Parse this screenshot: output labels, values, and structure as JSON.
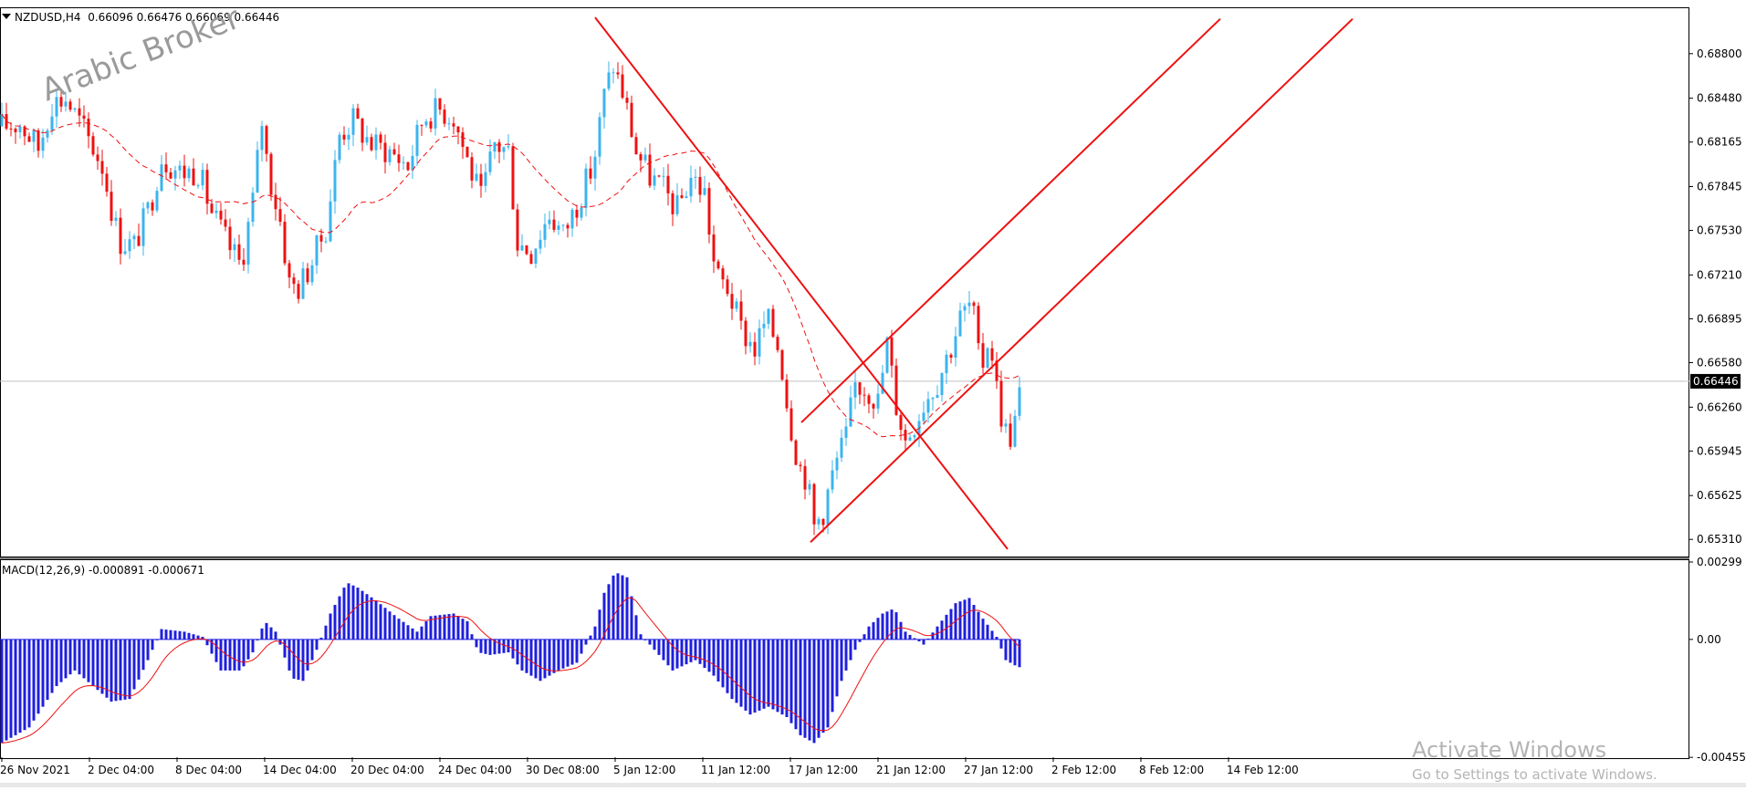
{
  "chart_data": [
    {
      "type": "candlestick",
      "symbol_line": "NZDUSD,H4",
      "ohlc_text": "0.66096 0.66476 0.66069 0.66446",
      "ylim": [
        0.652,
        0.6912
      ],
      "price_ticks": [
        "0.68800",
        "0.68480",
        "0.68165",
        "0.67845",
        "0.67530",
        "0.67210",
        "0.66895",
        "0.66580",
        "0.66260",
        "0.65945",
        "0.65625",
        "0.65310"
      ],
      "current_price_label": "0.66446",
      "current_price": 0.66446,
      "x_tick_labels": [
        "26 Nov 2021",
        "2 Dec 04:00",
        "8 Dec 04:00",
        "14 Dec 04:00",
        "20 Dec 04:00",
        "24 Dec 04:00",
        "30 Dec 08:00",
        "5 Jan 12:00",
        "11 Jan 12:00",
        "17 Jan 12:00",
        "21 Jan 12:00",
        "27 Jan 12:00",
        "2 Feb 12:00",
        "8 Feb 12:00",
        "14 Feb 12:00"
      ],
      "bull_color": "#3cb4ee",
      "bear_color": "#ee1111",
      "moving_average_color": "#ee1111",
      "trendline_color": "#ee1111",
      "close_path": [
        [
          0,
          0.6828
        ],
        [
          20,
          0.683
        ],
        [
          40,
          0.6812
        ],
        [
          55,
          0.6845
        ],
        [
          70,
          0.6848
        ],
        [
          90,
          0.6825
        ],
        [
          110,
          0.68
        ],
        [
          128,
          0.6746
        ],
        [
          145,
          0.6742
        ],
        [
          162,
          0.677
        ],
        [
          175,
          0.6806
        ],
        [
          195,
          0.6795
        ],
        [
          215,
          0.6796
        ],
        [
          230,
          0.6766
        ],
        [
          250,
          0.674
        ],
        [
          262,
          0.6728
        ],
        [
          275,
          0.6775
        ],
        [
          285,
          0.6832
        ],
        [
          292,
          0.6795
        ],
        [
          305,
          0.676
        ],
        [
          315,
          0.6715
        ],
        [
          325,
          0.6712
        ],
        [
          338,
          0.6728
        ],
        [
          355,
          0.6755
        ],
        [
          370,
          0.6822
        ],
        [
          385,
          0.6832
        ],
        [
          405,
          0.6815
        ],
        [
          425,
          0.681
        ],
        [
          445,
          0.68
        ],
        [
          462,
          0.6835
        ],
        [
          480,
          0.684
        ],
        [
          495,
          0.6835
        ],
        [
          512,
          0.68
        ],
        [
          525,
          0.6775
        ],
        [
          540,
          0.6815
        ],
        [
          555,
          0.681
        ],
        [
          565,
          0.6745
        ],
        [
          580,
          0.6738
        ],
        [
          600,
          0.6765
        ],
        [
          615,
          0.675
        ],
        [
          630,
          0.6772
        ],
        [
          648,
          0.68
        ],
        [
          660,
          0.685
        ],
        [
          670,
          0.6872
        ],
        [
          682,
          0.6848
        ],
        [
          695,
          0.681
        ],
        [
          710,
          0.6792
        ],
        [
          725,
          0.6782
        ],
        [
          740,
          0.6768
        ],
        [
          755,
          0.6792
        ],
        [
          770,
          0.678
        ],
        [
          782,
          0.672
        ],
        [
          795,
          0.6712
        ],
        [
          810,
          0.6682
        ],
        [
          825,
          0.6668
        ],
        [
          838,
          0.669
        ],
        [
          852,
          0.6668
        ],
        [
          862,
          0.6622
        ],
        [
          873,
          0.6585
        ],
        [
          882,
          0.6575
        ],
        [
          890,
          0.654
        ],
        [
          900,
          0.6552
        ],
        [
          912,
          0.6582
        ],
        [
          925,
          0.6605
        ],
        [
          935,
          0.6642
        ],
        [
          948,
          0.664
        ],
        [
          960,
          0.663
        ],
        [
          970,
          0.6672
        ],
        [
          980,
          0.6628
        ],
        [
          990,
          0.6602
        ],
        [
          1002,
          0.6618
        ],
        [
          1012,
          0.6632
        ],
        [
          1025,
          0.6645
        ],
        [
          1040,
          0.667
        ],
        [
          1050,
          0.669
        ],
        [
          1063,
          0.6702
        ],
        [
          1072,
          0.665
        ],
        [
          1082,
          0.668
        ],
        [
          1090,
          0.664
        ],
        [
          1098,
          0.661
        ],
        [
          1106,
          0.6605
        ],
        [
          1112,
          0.6622
        ],
        [
          1117,
          0.6644
        ]
      ],
      "macd_header": "MACD(12,26,9) -0.000891 -0.000671",
      "macd_ylim": [
        -0.00455,
        0.00299
      ],
      "macd_ticks": [
        "0.00299",
        "0.00",
        "-0.004554"
      ],
      "macd_hist_color": "#1f1fdd",
      "macd_signal_color": "#ee1111",
      "macd_path": [
        [
          0,
          -0.004
        ],
        [
          30,
          -0.0034
        ],
        [
          60,
          -0.0018
        ],
        [
          80,
          -0.0012
        ],
        [
          100,
          -0.0018
        ],
        [
          120,
          -0.0024
        ],
        [
          140,
          -0.0023
        ],
        [
          160,
          -0.0008
        ],
        [
          175,
          0.0004
        ],
        [
          200,
          0.0003
        ],
        [
          220,
          0.0001
        ],
        [
          240,
          -0.0012
        ],
        [
          262,
          -0.0012
        ],
        [
          275,
          -0.0005
        ],
        [
          288,
          0.0007
        ],
        [
          300,
          0.0003
        ],
        [
          318,
          -0.0015
        ],
        [
          330,
          -0.0016
        ],
        [
          345,
          -0.0004
        ],
        [
          360,
          0.001
        ],
        [
          378,
          0.0022
        ],
        [
          390,
          0.002
        ],
        [
          410,
          0.0015
        ],
        [
          435,
          0.0008
        ],
        [
          455,
          0.0003
        ],
        [
          470,
          0.0009
        ],
        [
          495,
          0.001
        ],
        [
          510,
          0.0007
        ],
        [
          522,
          -0.0005
        ],
        [
          535,
          -0.0006
        ],
        [
          555,
          -0.0005
        ],
        [
          570,
          -0.0012
        ],
        [
          590,
          -0.0016
        ],
        [
          610,
          -0.0012
        ],
        [
          630,
          -0.0009
        ],
        [
          650,
          0.0005
        ],
        [
          660,
          0.0018
        ],
        [
          672,
          0.0026
        ],
        [
          685,
          0.0024
        ],
        [
          700,
          0.0002
        ],
        [
          715,
          -0.0004
        ],
        [
          735,
          -0.0012
        ],
        [
          760,
          -0.0008
        ],
        [
          780,
          -0.0014
        ],
        [
          800,
          -0.0023
        ],
        [
          820,
          -0.0029
        ],
        [
          840,
          -0.0026
        ],
        [
          860,
          -0.003
        ],
        [
          875,
          -0.0037
        ],
        [
          890,
          -0.004
        ],
        [
          905,
          -0.0034
        ],
        [
          920,
          -0.0016
        ],
        [
          935,
          -0.0004
        ],
        [
          950,
          0.0005
        ],
        [
          965,
          0.001
        ],
        [
          978,
          0.0012
        ],
        [
          990,
          0.0003
        ],
        [
          1010,
          -0.0002
        ],
        [
          1025,
          0.0005
        ],
        [
          1045,
          0.0014
        ],
        [
          1060,
          0.0016
        ],
        [
          1075,
          0.0008
        ],
        [
          1090,
          0.0001
        ],
        [
          1100,
          -0.0008
        ],
        [
          1110,
          -0.001
        ],
        [
          1117,
          -0.0011
        ]
      ]
    }
  ],
  "watermark": "Arabic Broker",
  "os_notice": {
    "line1": "Activate Windows",
    "line2": "Go to Settings to activate Windows."
  }
}
